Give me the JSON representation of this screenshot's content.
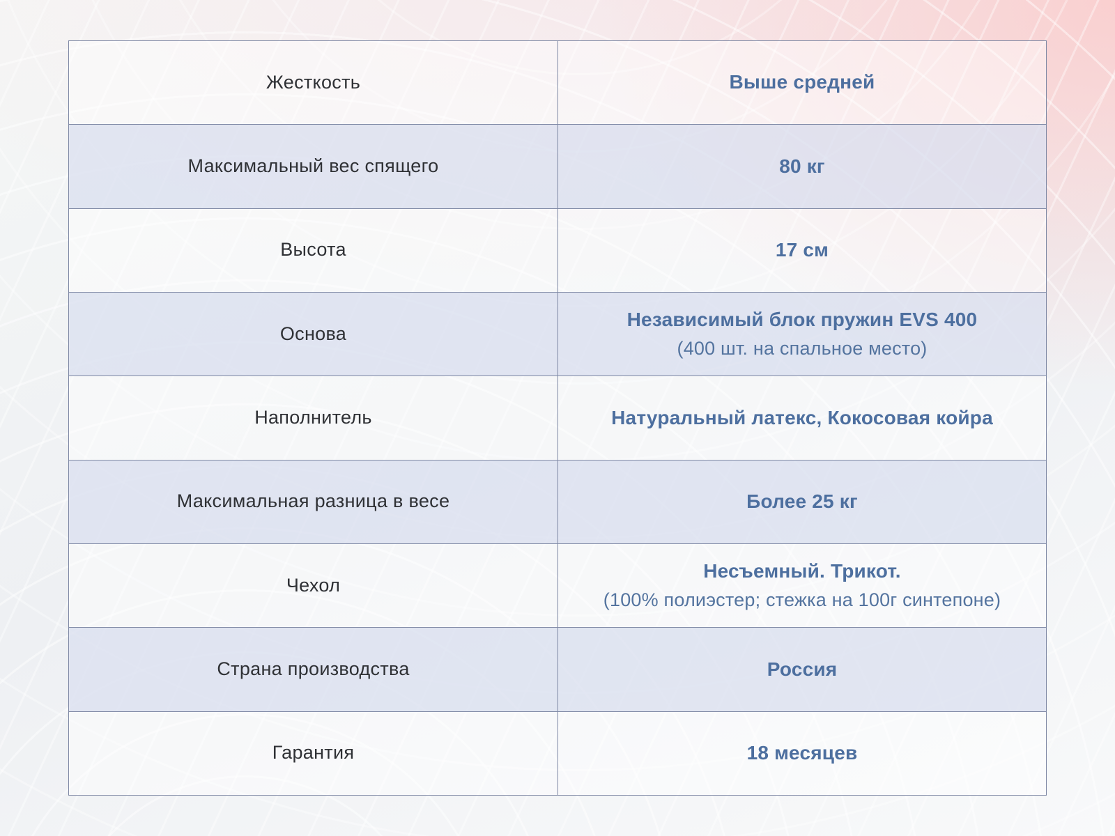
{
  "colors": {
    "value_text": "#4d6f9f",
    "label_text": "#2f3135",
    "row_alt_bg": "#dbe0ef",
    "border": "#7e88a4",
    "page_pink": "#facece",
    "page_gray": "#eef0f3"
  },
  "table": {
    "rows": [
      {
        "label": "Жесткость",
        "value": "Выше средней"
      },
      {
        "label": "Максимальный вес спящего",
        "value": "80 кг"
      },
      {
        "label": "Высота",
        "value": "17 см"
      },
      {
        "label": "Основа",
        "value": "Независимый блок пружин EVS 400",
        "value_note": "(400 шт. на спальное место)"
      },
      {
        "label": "Наполнитель",
        "value": "Натуральный латекс, Кокосовая койра"
      },
      {
        "label": "Максимальная разница в весе",
        "value": "Более 25 кг"
      },
      {
        "label": "Чехол",
        "value": "Несъемный. Трикот.",
        "value_note": "(100% полиэстер; стежка на 100г синтепоне)"
      },
      {
        "label": "Страна производства",
        "value": "Россия"
      },
      {
        "label": "Гарантия",
        "value": "18 месяцев"
      }
    ]
  }
}
